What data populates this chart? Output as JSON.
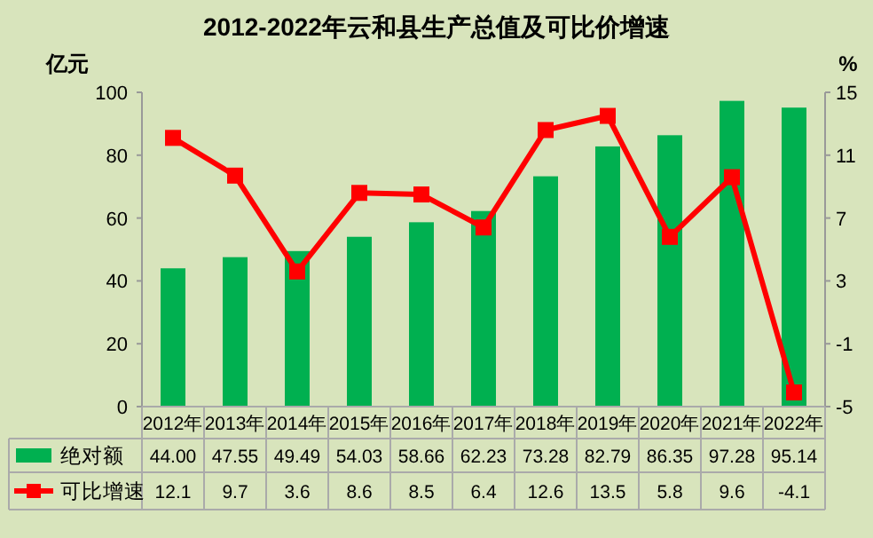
{
  "chart_data": {
    "type": "bar",
    "title": "2012-2022年云和县生产总值及可比价增速",
    "ylabel": "亿元",
    "y2label": "%",
    "categories": [
      "2012年",
      "2013年",
      "2014年",
      "2015年",
      "2016年",
      "2017年",
      "2018年",
      "2019年",
      "2020年",
      "2021年",
      "2022年"
    ],
    "series": [
      {
        "name": "绝对额",
        "color": "#00b050",
        "values": [
          44.0,
          47.55,
          49.49,
          54.03,
          58.66,
          62.23,
          73.28,
          82.79,
          86.35,
          97.28,
          95.14
        ],
        "value_labels": [
          "44.00",
          "47.55",
          "49.49",
          "54.03",
          "58.66",
          "62.23",
          "73.28",
          "82.79",
          "86.35",
          "97.28",
          "95.14"
        ]
      },
      {
        "name": "可比增速",
        "type": "line",
        "axis": "y2",
        "color": "#ff0000",
        "marker": "square",
        "values": [
          12.1,
          9.7,
          3.6,
          8.6,
          8.5,
          6.4,
          12.6,
          13.5,
          5.8,
          9.6,
          -4.1
        ],
        "value_labels": [
          "12.1",
          "9.7",
          "3.6",
          "8.6",
          "8.5",
          "6.4",
          "12.6",
          "13.5",
          "5.8",
          "9.6",
          "-4.1"
        ]
      }
    ],
    "ylim": [
      0,
      100
    ],
    "yticks": [
      0,
      20,
      40,
      60,
      80,
      100
    ],
    "y2lim": [
      -5,
      15
    ],
    "y2ticks": [
      -5,
      -1,
      3,
      7,
      11,
      15
    ],
    "legend": "bottom",
    "grid": false
  }
}
